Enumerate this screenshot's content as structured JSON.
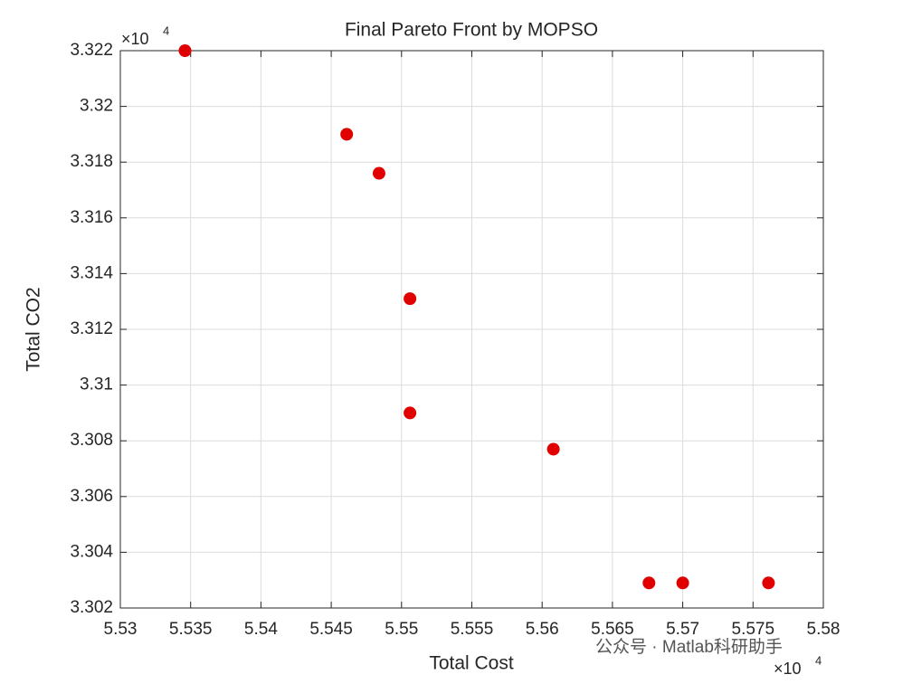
{
  "chart_data": {
    "type": "scatter",
    "title": "Final Pareto Front by MOPSO",
    "x_label": "Total Cost",
    "y_label": "Total CO2",
    "x_multiplier": {
      "base": "×10",
      "exponent": "4"
    },
    "y_multiplier": {
      "base": "×10",
      "exponent": "4"
    },
    "series": [
      {
        "color": "#e00000",
        "x": [
          5.5346,
          5.5461,
          5.5484,
          5.5506,
          5.5506,
          5.5608,
          5.5676,
          5.57,
          5.5761
        ],
        "values": [
          3.322,
          3.319,
          3.3176,
          3.3131,
          3.309,
          3.3077,
          3.3029,
          3.3029,
          3.3029
        ]
      }
    ],
    "xlim": [
      5.53,
      5.58
    ],
    "xticks": [
      5.53,
      5.535,
      5.54,
      5.545,
      5.55,
      5.555,
      5.56,
      5.565,
      5.57,
      5.575,
      5.58
    ],
    "ylim": [
      3.302,
      3.322
    ],
    "yticks": [
      3.302,
      3.304,
      3.306,
      3.308,
      3.31,
      3.312,
      3.314,
      3.316,
      3.318,
      3.32,
      3.322
    ],
    "grid": true,
    "watermark": "公众号 · Matlab科研助手"
  }
}
